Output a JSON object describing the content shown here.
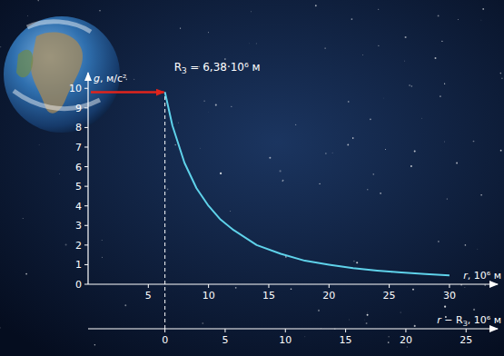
{
  "chart_data": {
    "type": "line",
    "color": "#5fd2ea",
    "x": [
      6.38,
      7,
      8,
      9,
      10,
      11,
      12,
      14,
      16,
      18,
      20,
      22,
      24,
      26,
      28,
      30
    ],
    "values": [
      9.8,
      8.1,
      6.2,
      4.9,
      4.0,
      3.3,
      2.8,
      2.0,
      1.55,
      1.2,
      1.0,
      0.82,
      0.7,
      0.6,
      0.52,
      0.45
    ],
    "xlim": [
      0,
      34
    ],
    "xticks": [
      5,
      10,
      15,
      20,
      25,
      30
    ],
    "ylim": [
      0,
      10.8
    ],
    "yticks": [
      0,
      1,
      2,
      3,
      4,
      5,
      6,
      7,
      8,
      9,
      10
    ],
    "x2lim": [
      -6.38,
      27.62
    ],
    "x2ticks": [
      0,
      5,
      10,
      15,
      20,
      25
    ],
    "x_label": [
      {
        "text": "r",
        "italic": true
      },
      {
        "text": ", 10⁶ м"
      }
    ],
    "y_label": [
      {
        "text": "g",
        "italic": true
      },
      {
        "text": ", м/с²"
      }
    ],
    "x2_label": [
      {
        "text": "r",
        "italic": true
      },
      {
        "text": " − R"
      },
      {
        "text": "З",
        "sub": true
      },
      {
        "text": ", 10⁶ м"
      }
    ],
    "annotation": {
      "x": 6.38,
      "parts": [
        {
          "text": "R"
        },
        {
          "text": "З",
          "sub": true
        },
        {
          "text": " = 6,38·10⁶ м"
        }
      ]
    },
    "grid": false
  }
}
